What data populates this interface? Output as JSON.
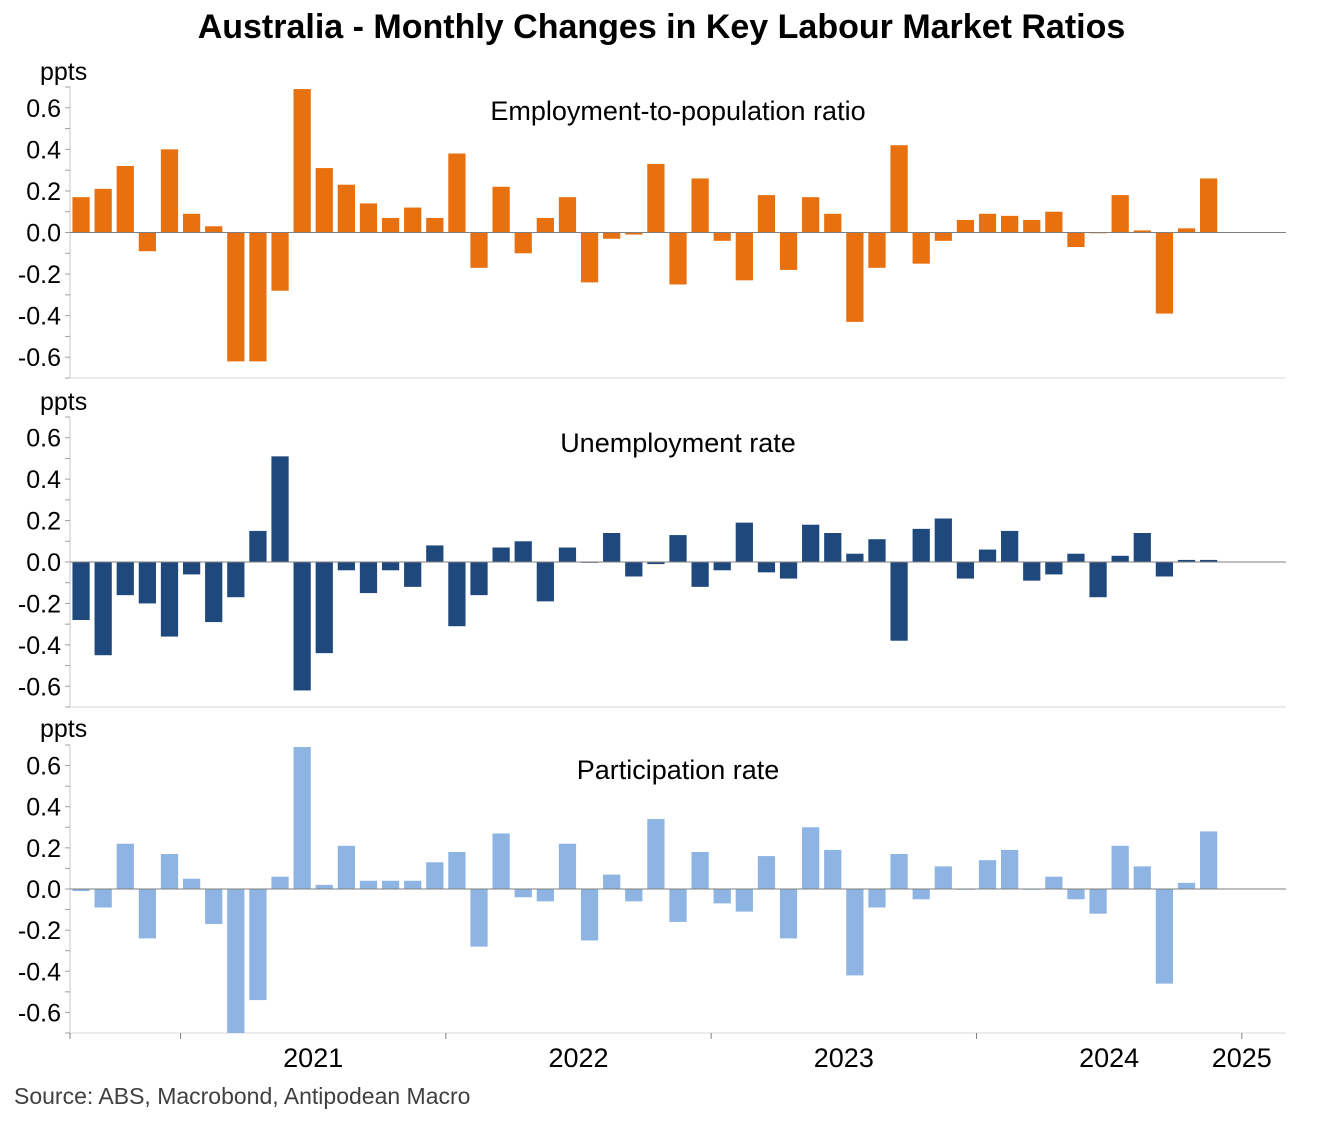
{
  "title": "Australia - Monthly Changes in Key Labour Market Ratios",
  "source": "Source: ABS, Macrobond, Antipodean Macro",
  "chart_data": {
    "type": "bar",
    "x_start": "2020-08",
    "x_end": "2024-11",
    "x_tick_labels": [
      "2021",
      "2022",
      "2023",
      "2024",
      "2025"
    ],
    "panels": [
      {
        "name": "Employment-to-population ratio",
        "unit": "ppts",
        "color": "#E8700E",
        "ylim": [
          -0.7,
          0.7
        ],
        "yticks": [
          -0.6,
          -0.4,
          -0.2,
          0.0,
          0.2,
          0.4,
          0.6
        ],
        "ytick_labels": [
          "-0.6",
          "-0.4",
          "-0.2",
          "0.0",
          "0.2",
          "0.4",
          "0.6"
        ],
        "values": [
          0.17,
          0.21,
          0.32,
          -0.09,
          0.4,
          0.09,
          0.03,
          -0.62,
          -0.62,
          -0.28,
          0.69,
          0.31,
          0.23,
          0.14,
          0.07,
          0.12,
          0.07,
          0.38,
          -0.17,
          0.22,
          -0.1,
          0.07,
          0.17,
          -0.24,
          -0.03,
          -0.01,
          0.33,
          -0.25,
          0.26,
          -0.04,
          -0.23,
          0.18,
          -0.18,
          0.17,
          0.09,
          -0.43,
          -0.17,
          0.42,
          -0.15,
          -0.04,
          0.06,
          0.09,
          0.08,
          0.06,
          0.1,
          -0.07,
          0.0,
          0.18,
          0.01,
          -0.39,
          0.02,
          0.26
        ]
      },
      {
        "name": "Unemployment rate",
        "unit": "ppts",
        "color": "#1F497D",
        "ylim": [
          -0.7,
          0.7
        ],
        "yticks": [
          -0.6,
          -0.4,
          -0.2,
          0.0,
          0.2,
          0.4,
          0.6
        ],
        "ytick_labels": [
          "-0.6",
          "-0.4",
          "-0.2",
          "0.0",
          "0.2",
          "0.4",
          "0.6"
        ],
        "values": [
          -0.28,
          -0.45,
          -0.16,
          -0.2,
          -0.36,
          -0.06,
          -0.29,
          -0.17,
          0.15,
          0.51,
          -0.62,
          -0.44,
          -0.04,
          -0.15,
          -0.04,
          -0.12,
          0.08,
          -0.31,
          -0.16,
          0.07,
          0.1,
          -0.19,
          0.07,
          0.0,
          0.14,
          -0.07,
          -0.01,
          0.13,
          -0.12,
          -0.04,
          0.19,
          -0.05,
          -0.08,
          0.18,
          0.14,
          0.04,
          0.11,
          -0.38,
          0.16,
          0.21,
          -0.08,
          0.06,
          0.15,
          -0.09,
          -0.06,
          0.04,
          -0.17,
          0.03,
          0.14,
          -0.07,
          0.01,
          0.01
        ]
      },
      {
        "name": "Participation rate",
        "unit": "ppts",
        "color": "#8DB4E2",
        "ylim": [
          -0.7,
          0.7
        ],
        "yticks": [
          -0.6,
          -0.4,
          -0.2,
          0.0,
          0.2,
          0.4,
          0.6
        ],
        "ytick_labels": [
          "-0.6",
          "-0.4",
          "-0.2",
          "0.0",
          "0.2",
          "0.4",
          "0.6"
        ],
        "values": [
          -0.01,
          -0.09,
          0.22,
          -0.24,
          0.17,
          0.05,
          -0.17,
          -0.7,
          -0.54,
          0.06,
          0.69,
          0.02,
          0.21,
          0.04,
          0.04,
          0.04,
          0.13,
          0.18,
          -0.28,
          0.27,
          -0.04,
          -0.06,
          0.22,
          -0.25,
          0.07,
          -0.06,
          0.34,
          -0.16,
          0.18,
          -0.07,
          -0.11,
          0.16,
          -0.24,
          0.3,
          0.19,
          -0.42,
          -0.09,
          0.17,
          -0.05,
          0.11,
          0.0,
          0.14,
          0.19,
          0.0,
          0.06,
          -0.05,
          -0.12,
          0.21,
          0.11,
          -0.46,
          0.03,
          0.28
        ]
      }
    ]
  }
}
